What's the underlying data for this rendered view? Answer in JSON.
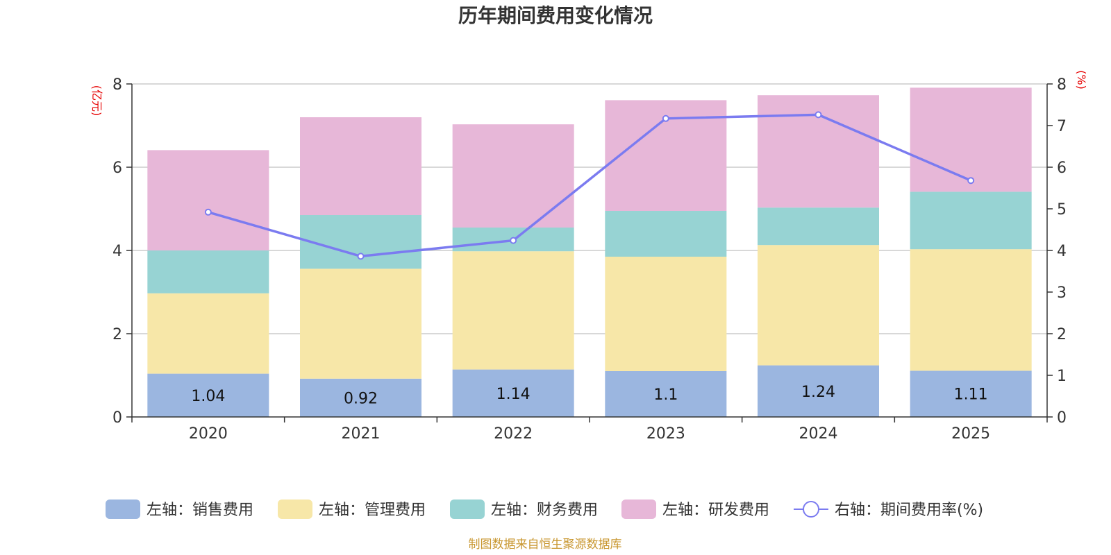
{
  "chart_data": {
    "type": "bar",
    "stacked": true,
    "title": "历年期间费用变化情况",
    "categories": [
      "2020",
      "2021",
      "2022",
      "2023",
      "2024",
      "2025"
    ],
    "left_axis": {
      "unit": "(亿元)",
      "ylim": [
        0,
        8
      ],
      "ticks": [
        "0",
        "2",
        "4",
        "6",
        "8"
      ]
    },
    "right_axis": {
      "unit": "(%)",
      "ylim": [
        0,
        8
      ],
      "ticks": [
        "0",
        "1",
        "2",
        "3",
        "4",
        "5",
        "6",
        "7",
        "8"
      ]
    },
    "series": [
      {
        "name": "左轴：销售费用",
        "axis": "left",
        "kind": "bar",
        "color": "#9bb6e0",
        "values": [
          1.04,
          0.92,
          1.14,
          1.1,
          1.24,
          1.11
        ],
        "labels": [
          "1.04",
          "0.92",
          "1.14",
          "1.1",
          "1.24",
          "1.11"
        ]
      },
      {
        "name": "左轴：管理费用",
        "axis": "left",
        "kind": "bar",
        "color": "#f7e7a8",
        "values": [
          1.93,
          2.64,
          2.84,
          2.75,
          2.89,
          2.92
        ]
      },
      {
        "name": "左轴：财务费用",
        "axis": "left",
        "kind": "bar",
        "color": "#97d3d3",
        "values": [
          1.03,
          1.29,
          0.57,
          1.1,
          0.9,
          1.38
        ]
      },
      {
        "name": "左轴：研发费用",
        "axis": "left",
        "kind": "bar",
        "color": "#e7b7d8",
        "values": [
          2.41,
          2.35,
          2.48,
          2.66,
          2.7,
          2.5
        ]
      },
      {
        "name": "右轴：期间费用率(%)",
        "axis": "right",
        "kind": "line",
        "color": "#7b7bf0",
        "values": [
          4.92,
          3.86,
          4.24,
          7.17,
          7.26,
          5.68
        ]
      }
    ],
    "grid": true,
    "legend_position": "bottom"
  },
  "source_note": "制图数据来自恒生聚源数据库"
}
